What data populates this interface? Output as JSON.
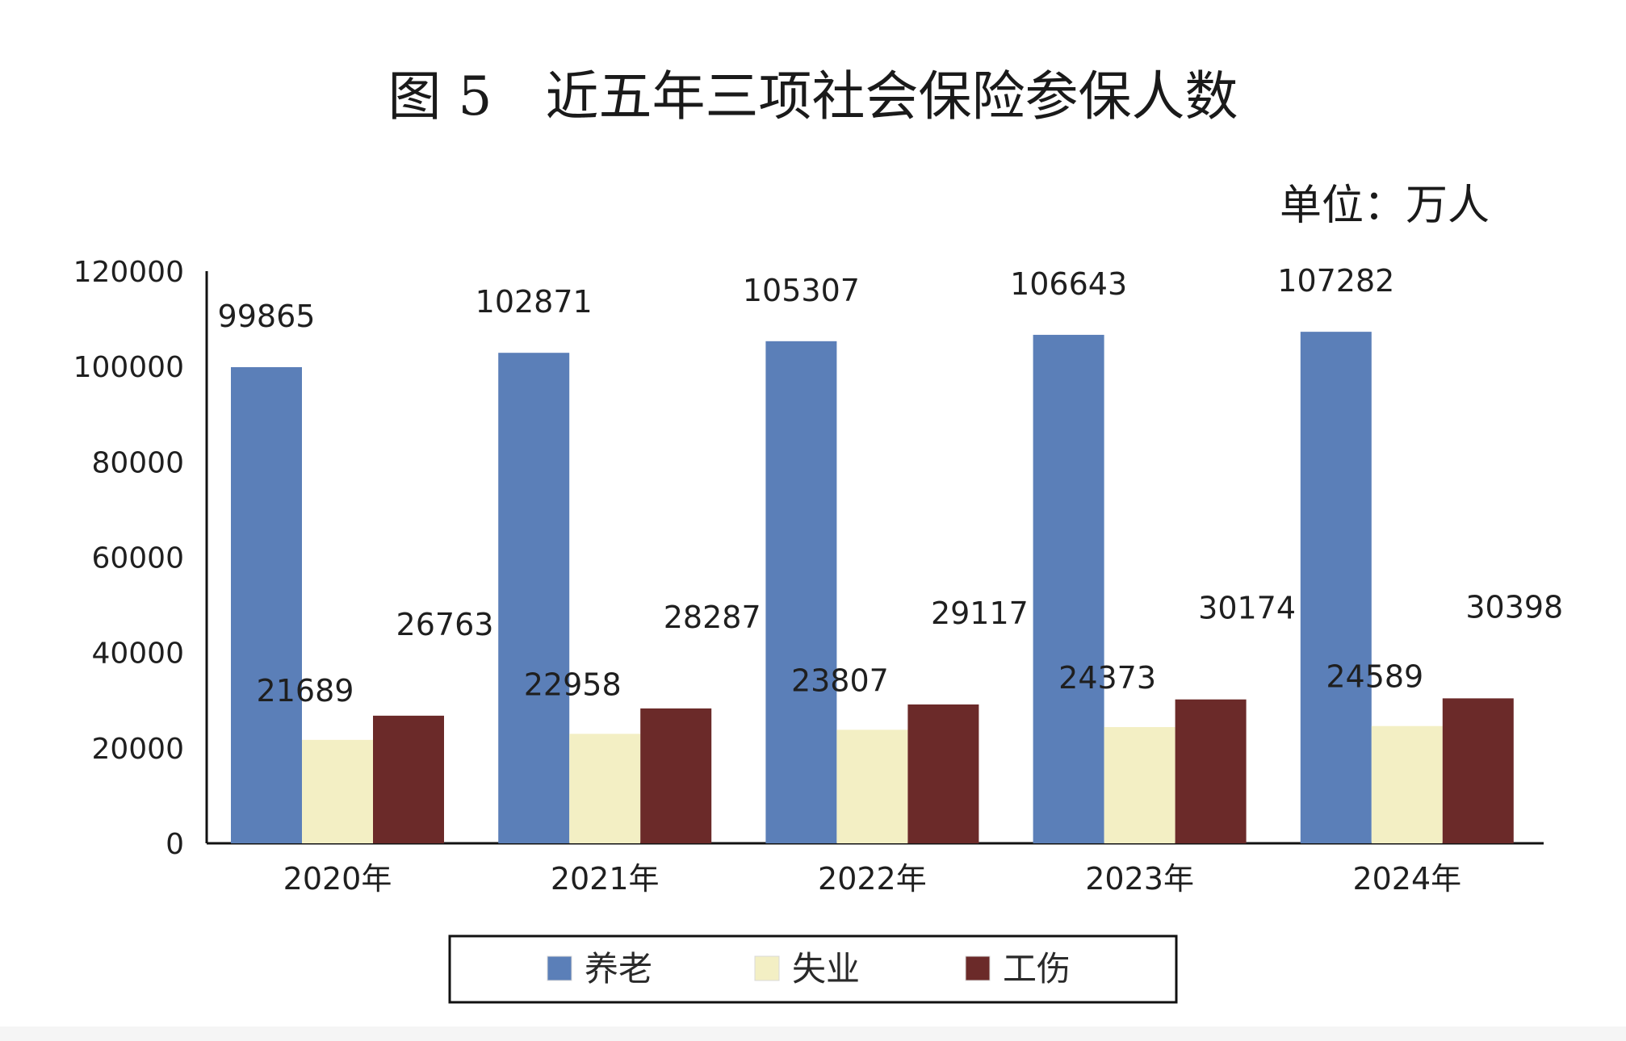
{
  "chart_data": {
    "type": "bar",
    "title": "图 5　近五年三项社会保险参保人数",
    "unit_label": "单位：万人",
    "categories": [
      "2020年",
      "2021年",
      "2022年",
      "2023年",
      "2024年"
    ],
    "series": [
      {
        "name": "养老",
        "color": "#5b7fb8",
        "values": [
          99865,
          102871,
          105307,
          106643,
          107282
        ]
      },
      {
        "name": "失业",
        "color": "#f3efc4",
        "values": [
          21689,
          22958,
          23807,
          24373,
          24589
        ]
      },
      {
        "name": "工伤",
        "color": "#6b2a29",
        "values": [
          26763,
          28287,
          29117,
          30174,
          30398
        ]
      }
    ],
    "ylim": [
      0,
      120000
    ],
    "yticks": [
      "0",
      "20000",
      "40000",
      "60000",
      "80000",
      "100000",
      "120000"
    ],
    "grid": false,
    "legend_position": "bottom",
    "xlabel": "",
    "ylabel": ""
  }
}
